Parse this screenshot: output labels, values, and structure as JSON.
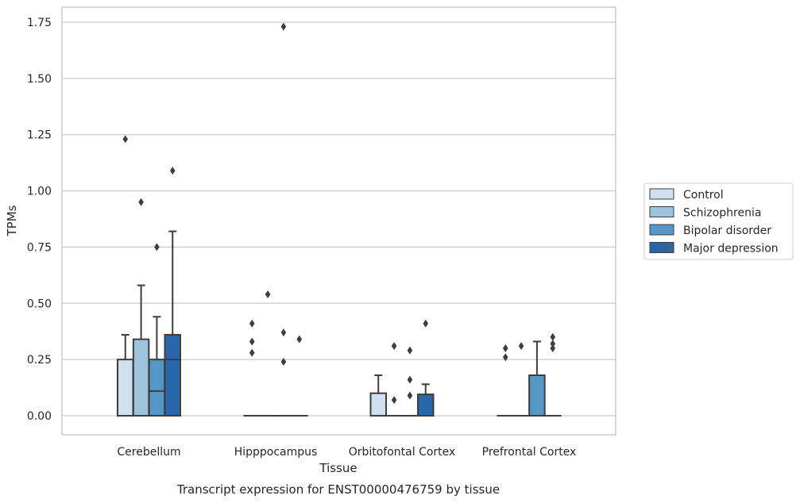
{
  "chart_data": {
    "type": "box",
    "title": "",
    "caption": "Transcript expression for ENST00000476759 by tissue",
    "xlabel": "Tissue",
    "ylabel": "TPMs",
    "ylim": [
      -0.085,
      1.82
    ],
    "yticks": [
      0.0,
      0.25,
      0.5,
      0.75,
      1.0,
      1.25,
      1.5,
      1.75
    ],
    "ytick_labels": [
      "0.00",
      "0.25",
      "0.50",
      "0.75",
      "1.00",
      "1.25",
      "1.50",
      "1.75"
    ],
    "grid": "horizontal",
    "legend_position": "right",
    "categories": [
      "Cerebellum",
      "Hipppocampus",
      "Orbitofontal Cortex",
      "Prefrontal Cortex"
    ],
    "series": [
      {
        "name": "Control",
        "color": "#d0e0f0",
        "boxes": [
          {
            "q1": 0.0,
            "median": 0.0,
            "q3": 0.25,
            "whisker_low": 0.0,
            "whisker_high": 0.36,
            "outliers": [
              1.23
            ]
          },
          {
            "q1": 0.0,
            "median": 0.0,
            "q3": 0.0,
            "whisker_low": 0.0,
            "whisker_high": 0.0,
            "outliers": [
              0.41,
              0.33,
              0.28
            ]
          },
          {
            "q1": 0.0,
            "median": 0.0,
            "q3": 0.1,
            "whisker_low": 0.0,
            "whisker_high": 0.18,
            "outliers": []
          },
          {
            "q1": 0.0,
            "median": 0.0,
            "q3": 0.0,
            "whisker_low": 0.0,
            "whisker_high": 0.0,
            "outliers": [
              0.3,
              0.26
            ]
          }
        ]
      },
      {
        "name": "Schizophrenia",
        "color": "#9dc3dd",
        "boxes": [
          {
            "q1": 0.0,
            "median": 0.0,
            "q3": 0.34,
            "whisker_low": 0.0,
            "whisker_high": 0.58,
            "outliers": [
              0.95
            ]
          },
          {
            "q1": 0.0,
            "median": 0.0,
            "q3": 0.0,
            "whisker_low": 0.0,
            "whisker_high": 0.0,
            "outliers": [
              0.54
            ]
          },
          {
            "q1": 0.0,
            "median": 0.0,
            "q3": 0.0,
            "whisker_low": 0.0,
            "whisker_high": 0.0,
            "outliers": [
              0.31,
              0.07
            ]
          },
          {
            "q1": 0.0,
            "median": 0.0,
            "q3": 0.0,
            "whisker_low": 0.0,
            "whisker_high": 0.0,
            "outliers": [
              0.31
            ]
          }
        ]
      },
      {
        "name": "Bipolar disorder",
        "color": "#5597c6",
        "boxes": [
          {
            "q1": 0.0,
            "median": 0.11,
            "q3": 0.25,
            "whisker_low": 0.0,
            "whisker_high": 0.44,
            "outliers": [
              0.75
            ]
          },
          {
            "q1": 0.0,
            "median": 0.0,
            "q3": 0.0,
            "whisker_low": 0.0,
            "whisker_high": 0.0,
            "outliers": [
              1.73,
              0.37,
              0.24
            ]
          },
          {
            "q1": 0.0,
            "median": 0.0,
            "q3": 0.0,
            "whisker_low": 0.0,
            "whisker_high": 0.0,
            "outliers": [
              0.29,
              0.16,
              0.09
            ]
          },
          {
            "q1": 0.0,
            "median": 0.0,
            "q3": 0.18,
            "whisker_low": 0.0,
            "whisker_high": 0.33,
            "outliers": []
          }
        ]
      },
      {
        "name": "Major depression",
        "color": "#2a67a8",
        "boxes": [
          {
            "q1": 0.0,
            "median": 0.25,
            "q3": 0.36,
            "whisker_low": 0.0,
            "whisker_high": 0.82,
            "outliers": [
              1.09
            ]
          },
          {
            "q1": 0.0,
            "median": 0.0,
            "q3": 0.0,
            "whisker_low": 0.0,
            "whisker_high": 0.0,
            "outliers": [
              0.34
            ]
          },
          {
            "q1": 0.0,
            "median": 0.0,
            "q3": 0.095,
            "whisker_low": 0.0,
            "whisker_high": 0.14,
            "outliers": [
              0.41
            ]
          },
          {
            "q1": 0.0,
            "median": 0.0,
            "q3": 0.0,
            "whisker_low": 0.0,
            "whisker_high": 0.0,
            "outliers": [
              0.35,
              0.32,
              0.3
            ]
          }
        ]
      }
    ]
  }
}
